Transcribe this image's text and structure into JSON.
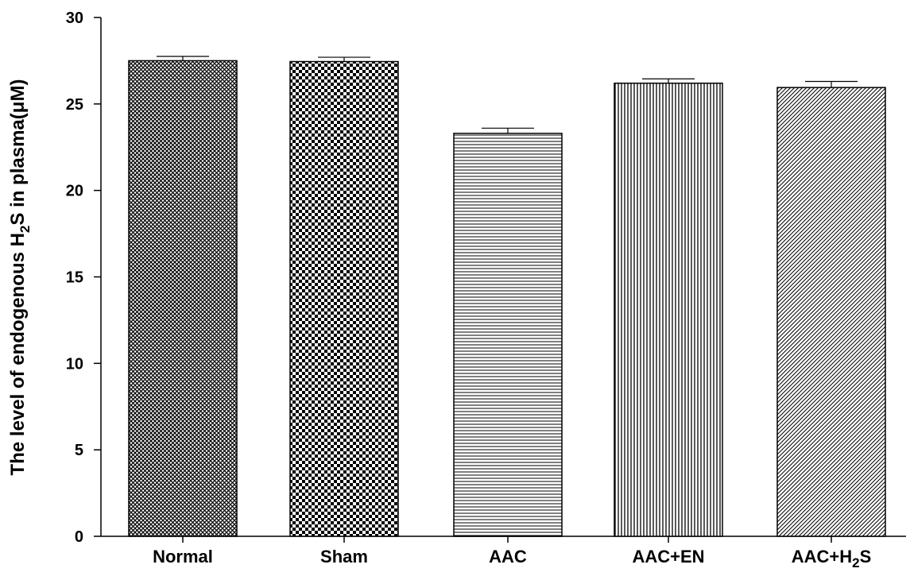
{
  "chart_data": {
    "type": "bar",
    "categories": [
      "Normal",
      "Sham",
      "AAC",
      "AAC+EN",
      "AAC+H₂S"
    ],
    "values": [
      27.5,
      27.45,
      23.3,
      26.2,
      25.95
    ],
    "errors": [
      0.25,
      0.25,
      0.3,
      0.25,
      0.35
    ],
    "patterns": [
      "dense-crosshatch",
      "checkerboard",
      "horizontal-lines",
      "vertical-lines",
      "diagonal-lines"
    ],
    "title": "",
    "xlabel": "",
    "ylabel": {
      "prefix": "The level of endogenous H",
      "subscript": "2",
      "suffix": "S in plasma(μM)"
    },
    "ylim": [
      0,
      30
    ],
    "yticks": [
      0,
      5,
      10,
      15,
      20,
      25,
      30
    ],
    "grid": false,
    "colors": {
      "bar_fill": "#ffffff",
      "pattern": "#000000",
      "axis": "#000000"
    }
  }
}
